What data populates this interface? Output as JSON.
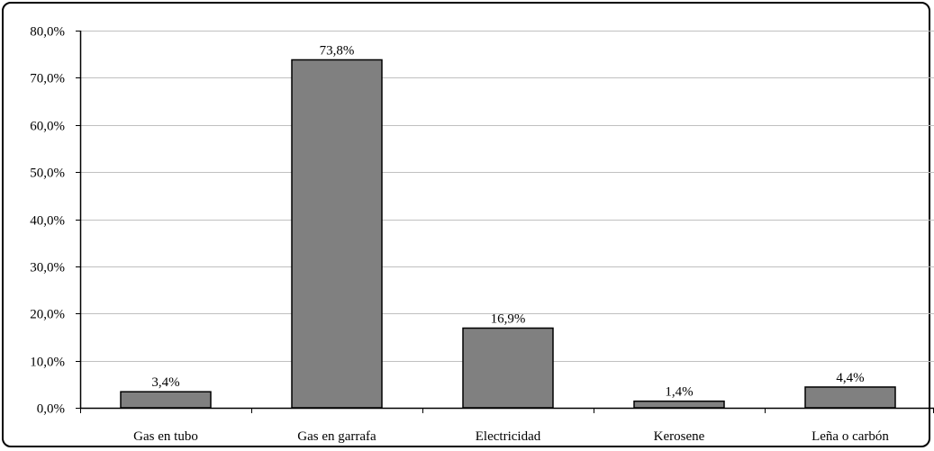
{
  "chart_data": {
    "type": "bar",
    "categories": [
      "Gas en tubo",
      "Gas en garrafa",
      "Electricidad",
      "Kerosene",
      "Leña o carbón"
    ],
    "values": [
      3.4,
      73.8,
      16.9,
      1.4,
      4.4
    ],
    "data_labels": [
      "3,4%",
      "73,8%",
      "16,9%",
      "1,4%",
      "4,4%"
    ],
    "y_ticks": [
      0,
      10,
      20,
      30,
      40,
      50,
      60,
      70,
      80
    ],
    "y_tick_labels": [
      "0,0%",
      "10,0%",
      "20,0%",
      "30,0%",
      "40,0%",
      "50,0%",
      "60,0%",
      "70,0%",
      "80,0%"
    ],
    "ylim": [
      0,
      80
    ],
    "grid": true,
    "legend": "none",
    "colors": {
      "bar": "#808080",
      "bar_stroke": "#000000",
      "grid": "#c0c0c0",
      "axis": "#000000"
    }
  }
}
